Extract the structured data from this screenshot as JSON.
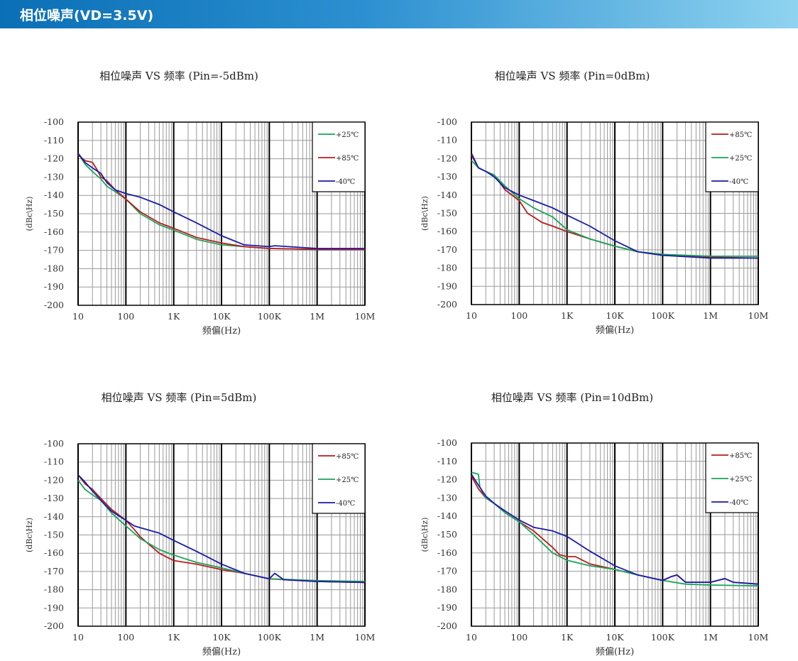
{
  "header": {
    "title": "相位噪声(VD=3.5V)"
  },
  "common": {
    "ylabel": "(dBc\\Hz)",
    "xlabel": "频偏(Hz)",
    "ylim": [
      -200,
      -100
    ],
    "yticks": [
      "-100",
      "-110",
      "-120",
      "-130",
      "-140",
      "-150",
      "-160",
      "-170",
      "-180",
      "-190",
      "-200"
    ],
    "xticks": [
      "10",
      "100",
      "1K",
      "10K",
      "100K",
      "1M",
      "10M"
    ],
    "colors": {
      "+85℃": "#b71c1c",
      "+25℃": "#1aa35a",
      "-40℃": "#1a1aa8"
    }
  },
  "chart_data": [
    {
      "type": "line",
      "title": "相位噪声 VS 频率 (Pin=-5dBm)",
      "xscale": "log",
      "xlim": [
        10,
        10000000
      ],
      "ylim": [
        -200,
        -100
      ],
      "legend": [
        "+25℃",
        "+85℃",
        "-40℃"
      ],
      "legend_position": "top-right",
      "series": [
        {
          "name": "+25℃",
          "x": [
            10,
            14,
            20,
            30,
            40,
            60,
            100,
            200,
            500,
            1000,
            3000,
            10000,
            30000,
            100000,
            1000000,
            10000000
          ],
          "y": [
            -117,
            -123,
            -127,
            -131,
            -135,
            -138,
            -142,
            -150,
            -156,
            -159,
            -164,
            -167,
            -168,
            -169,
            -169.5,
            -169.5
          ]
        },
        {
          "name": "+85℃",
          "x": [
            10,
            14,
            20,
            25,
            30,
            40,
            60,
            100,
            200,
            500,
            1000,
            3000,
            10000,
            30000,
            100000,
            1000000,
            10000000
          ],
          "y": [
            -118,
            -121,
            -122,
            -126,
            -130,
            -132,
            -137,
            -142,
            -149,
            -155,
            -158,
            -163,
            -166,
            -168,
            -169,
            -169.5,
            -169.5
          ]
        },
        {
          "name": "-40℃",
          "x": [
            10,
            14,
            20,
            30,
            40,
            60,
            100,
            200,
            500,
            1000,
            3000,
            10000,
            30000,
            100000,
            130000,
            1000000,
            10000000
          ],
          "y": [
            -117,
            -122,
            -125,
            -128,
            -133,
            -137,
            -139,
            -141,
            -145,
            -149,
            -155,
            -162,
            -167,
            -168,
            -167.5,
            -169,
            -169
          ]
        }
      ]
    },
    {
      "type": "line",
      "title": "相位噪声 VS 频率 (Pin=0dBm)",
      "xscale": "log",
      "xlim": [
        10,
        10000000
      ],
      "ylim": [
        -200,
        -100
      ],
      "legend": [
        "+85℃",
        "+25℃",
        "-40℃"
      ],
      "legend_position": "top-right",
      "series": [
        {
          "name": "+85℃",
          "x": [
            10,
            14,
            20,
            30,
            50,
            100,
            150,
            200,
            300,
            500,
            1000,
            3000,
            10000,
            30000,
            100000,
            1000000,
            10000000
          ],
          "y": [
            -118,
            -125,
            -127,
            -129,
            -137,
            -143,
            -150,
            -152,
            -155,
            -157,
            -160,
            -164,
            -168,
            -171,
            -173,
            -174,
            -174.5
          ]
        },
        {
          "name": "+25℃",
          "x": [
            10,
            14,
            20,
            30,
            50,
            100,
            200,
            500,
            1000,
            3000,
            10000,
            30000,
            100000,
            1000000,
            10000000
          ],
          "y": [
            -121,
            -125,
            -127,
            -129,
            -135,
            -142,
            -147,
            -152,
            -159,
            -164,
            -168,
            -171,
            -172.5,
            -173.5,
            -173.5
          ]
        },
        {
          "name": "-40℃",
          "x": [
            10,
            14,
            20,
            30,
            50,
            100,
            200,
            500,
            1000,
            3000,
            10000,
            30000,
            100000,
            1000000,
            10000000
          ],
          "y": [
            -117,
            -125,
            -127,
            -130,
            -136,
            -140,
            -143,
            -147,
            -151,
            -157,
            -165,
            -171,
            -173,
            -174.5,
            -174.5
          ]
        }
      ]
    },
    {
      "type": "line",
      "title": "相位噪声 VS 频率 (Pin=5dBm)",
      "xscale": "log",
      "xlim": [
        10,
        10000000
      ],
      "ylim": [
        -200,
        -100
      ],
      "legend": [
        "+85℃",
        "+25℃",
        "-40℃"
      ],
      "legend_position": "top-right",
      "series": [
        {
          "name": "+85℃",
          "x": [
            10,
            14,
            20,
            30,
            50,
            100,
            150,
            200,
            300,
            500,
            700,
            1000,
            3000,
            10000,
            30000,
            100000,
            1000000,
            10000000
          ],
          "y": [
            -117,
            -122,
            -125,
            -130,
            -136,
            -142,
            -147,
            -151,
            -155,
            -160,
            -162,
            -164,
            -166,
            -169,
            -171,
            -174,
            -175.5,
            -176
          ]
        },
        {
          "name": "+25℃",
          "x": [
            10,
            14,
            20,
            30,
            50,
            100,
            200,
            500,
            1000,
            3000,
            10000,
            30000,
            100000,
            1000000,
            10000000
          ],
          "y": [
            -120,
            -125,
            -128,
            -131,
            -138,
            -145,
            -152,
            -158,
            -161,
            -165,
            -168,
            -171,
            -174,
            -175,
            -175.5
          ]
        },
        {
          "name": "-40℃",
          "x": [
            10,
            14,
            20,
            30,
            50,
            100,
            150,
            200,
            500,
            1000,
            3000,
            10000,
            30000,
            100000,
            130000,
            200000,
            1000000,
            10000000
          ],
          "y": [
            -117,
            -121,
            -126,
            -131,
            -137,
            -142,
            -145,
            -146,
            -149,
            -153,
            -159,
            -166,
            -171,
            -174,
            -171,
            -174.5,
            -175.5,
            -176
          ]
        }
      ]
    },
    {
      "type": "line",
      "title": "相位噪声 VS 频率 (Pin=10dBm)",
      "xscale": "log",
      "xlim": [
        10,
        10000000
      ],
      "ylim": [
        -200,
        -100
      ],
      "legend": [
        "+85℃",
        "+25℃",
        "-40℃"
      ],
      "legend_position": "top-right",
      "series": [
        {
          "name": "+85℃",
          "x": [
            10,
            14,
            20,
            30,
            50,
            100,
            200,
            500,
            700,
            1000,
            1500,
            3000,
            10000,
            30000,
            100000,
            150000,
            200000,
            300000,
            1000000,
            2000000,
            3000000,
            10000000
          ],
          "y": [
            -118,
            -125,
            -130,
            -133,
            -138,
            -143,
            -148,
            -157,
            -161,
            -162,
            -162,
            -166,
            -169,
            -172,
            -175,
            -173,
            -172,
            -176,
            -176,
            -174,
            -176,
            -177
          ]
        },
        {
          "name": "+25℃",
          "x": [
            10,
            14,
            15,
            20,
            30,
            50,
            100,
            200,
            500,
            1000,
            3000,
            10000,
            30000,
            100000,
            300000,
            1000000,
            10000000
          ],
          "y": [
            -116,
            -117,
            -124,
            -130,
            -133,
            -138,
            -143,
            -150,
            -160,
            -164,
            -167,
            -169,
            -172,
            -175,
            -177,
            -177.5,
            -178
          ]
        },
        {
          "name": "-40℃",
          "x": [
            10,
            14,
            20,
            30,
            50,
            100,
            200,
            500,
            1000,
            3000,
            10000,
            30000,
            100000,
            150000,
            200000,
            300000,
            1000000,
            2000000,
            3000000,
            10000000
          ],
          "y": [
            -117,
            -123,
            -129,
            -133,
            -137,
            -142,
            -146,
            -148,
            -151,
            -159,
            -167,
            -172,
            -175,
            -173,
            -172,
            -176,
            -176,
            -174,
            -176,
            -177
          ]
        }
      ]
    }
  ]
}
